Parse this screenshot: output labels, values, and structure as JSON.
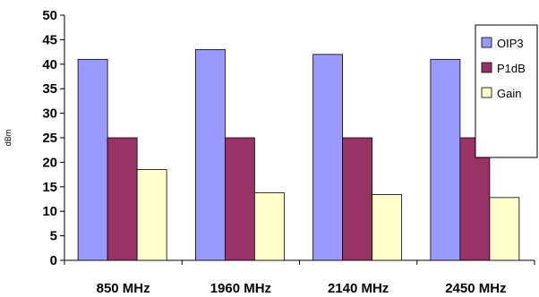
{
  "chart_data": {
    "type": "bar",
    "title": "",
    "xlabel": "",
    "ylabel": "dBm",
    "ylim": [
      0,
      50
    ],
    "yticks": [
      0,
      5,
      10,
      15,
      20,
      25,
      30,
      35,
      40,
      45,
      50
    ],
    "grid": false,
    "legend_position": "top-right",
    "categories": [
      "850 MHz",
      "1960 MHz",
      "2140 MHz",
      "2450 MHz"
    ],
    "series": [
      {
        "name": "OIP3",
        "color": "#9999ff",
        "values": [
          41,
          43,
          42,
          41
        ]
      },
      {
        "name": "P1dB",
        "color": "#993366",
        "values": [
          25,
          25,
          25,
          25
        ]
      },
      {
        "name": "Gain",
        "color": "#ffffcc",
        "values": [
          18.5,
          13.8,
          13.4,
          12.8
        ]
      }
    ]
  }
}
